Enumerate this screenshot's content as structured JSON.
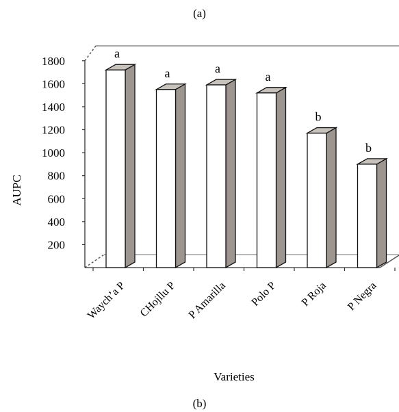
{
  "captions": {
    "top": "(a)",
    "bottom": "(b)"
  },
  "chart_data": {
    "type": "bar",
    "style": "3d",
    "xlabel": "Varieties",
    "ylabel": "AUPC",
    "ylim": [
      0,
      1800
    ],
    "yticks": [
      200,
      400,
      600,
      800,
      1000,
      1200,
      1400,
      1600,
      1800
    ],
    "categories": [
      "Waych’a P",
      "CHojllu P",
      "P Amarilla",
      "Polo P",
      "P Roja",
      "P Negra"
    ],
    "values": [
      1720,
      1550,
      1590,
      1520,
      1170,
      900
    ],
    "labels": [
      "a",
      "a",
      "a",
      "a",
      "b",
      "b"
    ],
    "colors": {
      "bar_front": "#ffffff",
      "bar_side": "#9d958f",
      "bar_top": "#c8c2bd",
      "frame": "#8a8a8a",
      "floor": "#b0b0b0"
    },
    "grid": false,
    "legend": "none"
  }
}
